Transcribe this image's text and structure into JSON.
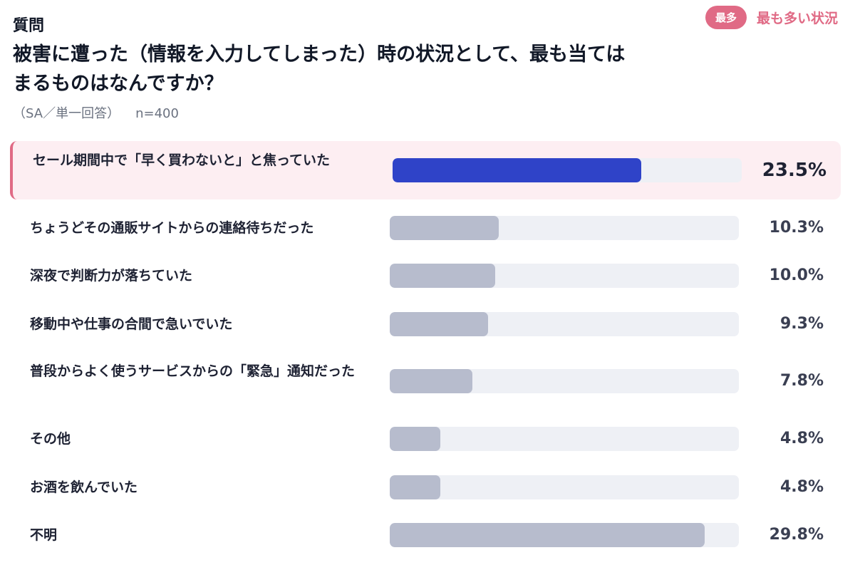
{
  "header": {
    "question_label": "質問",
    "question": "被害に遭った（情報を入力してしまった）時の状況として、最も当てはまるものはなんですか？",
    "question_type": "（SA／単一回答）",
    "sample": "n=400"
  },
  "legend": {
    "badge": "最多",
    "text": "最も多い状況"
  },
  "colors": {
    "accent_pink": "#e06a85",
    "highlight_bar": "#2f43c8",
    "normal_bar": "#b7bccd",
    "track": "#eef0f5"
  },
  "chart_data": {
    "type": "bar",
    "orientation": "horizontal",
    "xlim": [
      0,
      33
    ],
    "categories": [
      "セール期間中で「早く買わないと」と焦っていた",
      "ちょうどその通販サイトからの連絡待ちだった",
      "深夜で判断力が落ちていた",
      "移動中や仕事の合間で急いでいた",
      "普段からよく使うサービスからの「緊急」通知だった",
      "その他",
      "お酒を飲んでいた",
      "不明"
    ],
    "values": [
      23.5,
      10.3,
      10.0,
      9.3,
      7.8,
      4.8,
      4.8,
      29.8
    ],
    "value_labels": [
      "23.5%",
      "10.3%",
      "10.0%",
      "9.3%",
      "7.8%",
      "4.8%",
      "4.8%",
      "29.8%"
    ],
    "highlight_index": 0
  }
}
